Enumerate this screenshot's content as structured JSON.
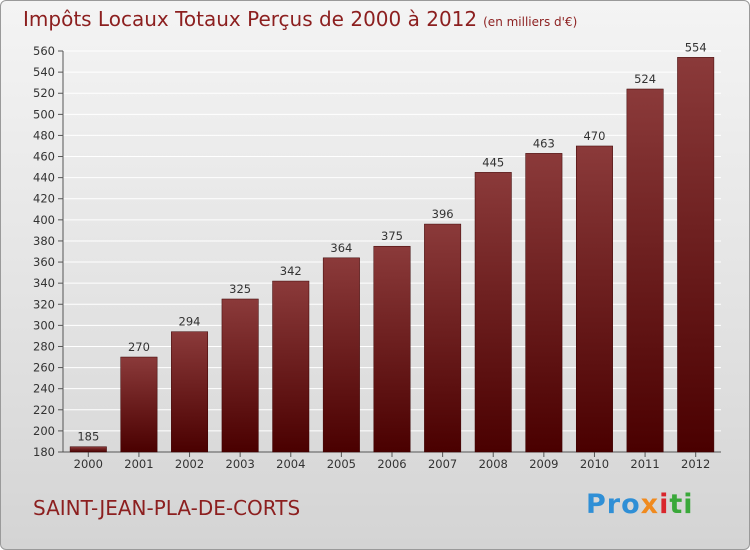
{
  "header": {
    "title": "Impôts Locaux Totaux Perçus de 2000 à 2012",
    "unit": "(en milliers d'€)"
  },
  "footer": {
    "commune": "SAINT-JEAN-PLA-DE-CORTS",
    "logo": [
      "Pro",
      "x",
      "i",
      "ti"
    ]
  },
  "colors": {
    "bar_top": "#8b3a3a",
    "bar_bottom": "#4a0000",
    "title": "#8c1f1f",
    "grid": "#ffffff"
  },
  "chart_data": {
    "type": "bar",
    "title": "Impôts Locaux Totaux Perçus de 2000 à 2012",
    "xlabel": "",
    "ylabel": "",
    "categories": [
      "2000",
      "2001",
      "2002",
      "2003",
      "2004",
      "2005",
      "2006",
      "2007",
      "2008",
      "2009",
      "2010",
      "2011",
      "2012"
    ],
    "values": [
      185,
      270,
      294,
      325,
      342,
      364,
      375,
      396,
      445,
      463,
      470,
      524,
      554
    ],
    "ylim": [
      180,
      560
    ],
    "yticks": [
      180,
      200,
      220,
      240,
      260,
      280,
      300,
      320,
      340,
      360,
      380,
      400,
      420,
      440,
      460,
      480,
      500,
      520,
      540,
      560
    ],
    "grid": true,
    "legend": "none"
  }
}
